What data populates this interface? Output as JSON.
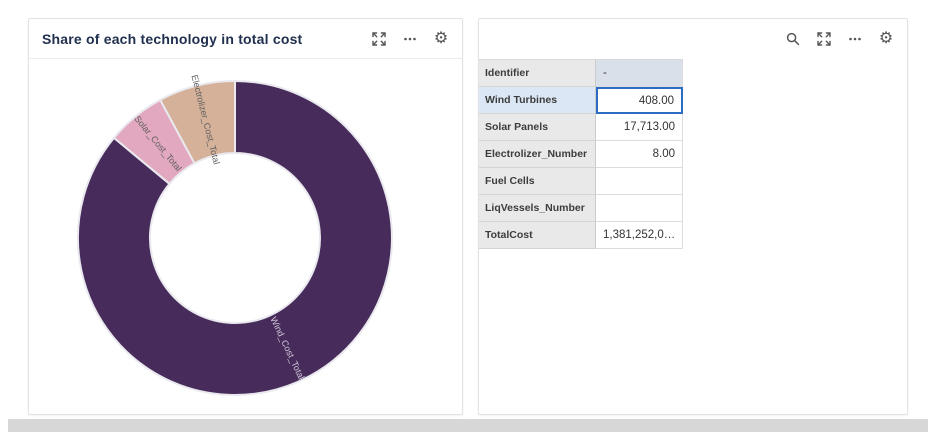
{
  "left_panel": {
    "title": "Share of each technology in total cost",
    "icons": [
      {
        "name": "expand"
      },
      {
        "name": "more-options"
      },
      {
        "name": "settings"
      }
    ]
  },
  "chart_data": {
    "type": "pie",
    "variant": "donut",
    "title": "Share of each technology in total cost",
    "legend": "none",
    "labels": "rotated-radial",
    "series": [
      {
        "name": "Wind_Cost_Total",
        "value": 86.0,
        "color": "#472b5a",
        "label_color": "#d3cbdc"
      },
      {
        "name": "Solar_Cost_Total",
        "value": 6.1,
        "color": "#e2a8c0",
        "label_color": "#5f5f5f"
      },
      {
        "name": "Electrolizer_Cost_Total",
        "value": 7.9,
        "color": "#d4b198",
        "label_color": "#5f5f5f"
      }
    ],
    "slice_border_color": "#e9e9ef"
  },
  "right_panel": {
    "icons": [
      {
        "name": "search"
      },
      {
        "name": "expand"
      },
      {
        "name": "more-options"
      },
      {
        "name": "settings"
      }
    ],
    "gear_glyph": "⚙",
    "table": {
      "rows": [
        {
          "label": "Identifier",
          "value": "-",
          "align": "left",
          "value_bg": "muted"
        },
        {
          "label": "Wind Turbines",
          "value": "408.00",
          "align": "right",
          "selected": true
        },
        {
          "label": "Solar Panels",
          "value": "17,713.00",
          "align": "right"
        },
        {
          "label": "Electrolizer_Number",
          "value": "8.00",
          "align": "right"
        },
        {
          "label": "Fuel Cells",
          "value": "",
          "align": "right"
        },
        {
          "label": "LiqVessels_Number",
          "value": "",
          "align": "right"
        },
        {
          "label": "TotalCost",
          "value": "1,381,252,0…",
          "align": "left"
        }
      ]
    }
  },
  "colors": {
    "card_border": "#e2e2e6",
    "title_text": "#21304f",
    "label_cell_bg": "#e9e9e9",
    "selected_label_bg": "#dbe7f4",
    "selected_cell_border": "#2b6cc4",
    "muted_value_bg": "#dae0e9",
    "bottom_strip": "#d7d7d7"
  }
}
